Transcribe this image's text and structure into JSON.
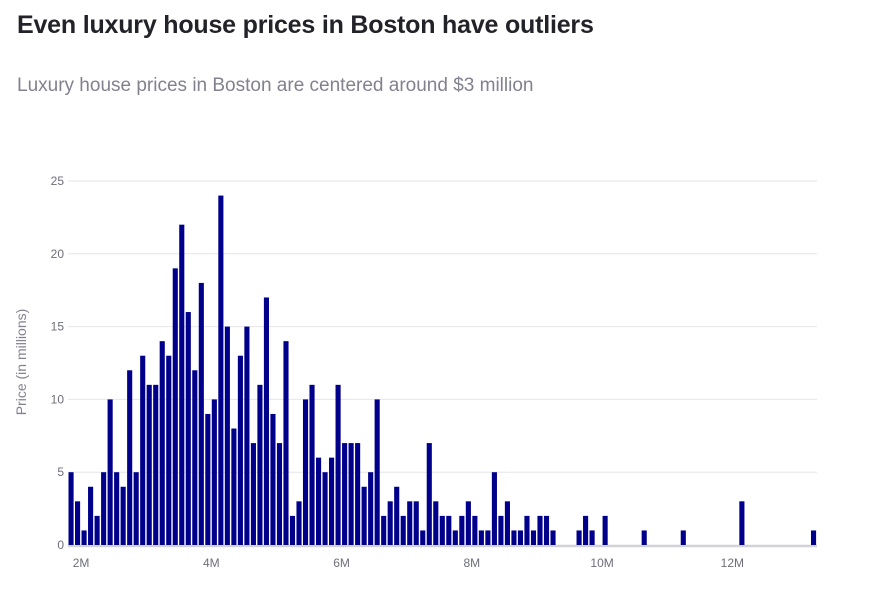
{
  "title": "Even luxury house prices in Boston have outliers",
  "subtitle": "Luxury house prices in Boston are centered around $3 million",
  "colors": {
    "bar": "#00008b",
    "grid": "#e6e6ea",
    "baseline": "#d2d2d7",
    "text": "#222229",
    "muted": "#82828f"
  },
  "chart_data": {
    "type": "bar",
    "ylabel": "Price (in millions)",
    "xlabel": "",
    "grid": true,
    "ylim": [
      0,
      25
    ],
    "yticks": [
      0,
      5,
      10,
      15,
      20,
      25
    ],
    "x_range": [
      1.8,
      13.3
    ],
    "x_ticks": [
      2,
      4,
      6,
      8,
      10,
      12
    ],
    "x_tick_labels": [
      "2M",
      "4M",
      "6M",
      "8M",
      "10M",
      "12M"
    ],
    "bin_width": 0.1,
    "x": [
      1.8,
      1.9,
      2.0,
      2.1,
      2.2,
      2.3,
      2.4,
      2.5,
      2.6,
      2.7,
      2.8,
      2.9,
      3.0,
      3.1,
      3.2,
      3.3,
      3.4,
      3.5,
      3.6,
      3.7,
      3.8,
      3.9,
      4.0,
      4.1,
      4.2,
      4.3,
      4.4,
      4.5,
      4.6,
      4.7,
      4.8,
      4.9,
      5.0,
      5.1,
      5.2,
      5.3,
      5.4,
      5.5,
      5.6,
      5.7,
      5.8,
      5.9,
      6.0,
      6.1,
      6.2,
      6.3,
      6.4,
      6.5,
      6.6,
      6.7,
      6.8,
      6.9,
      7.0,
      7.1,
      7.2,
      7.3,
      7.4,
      7.5,
      7.6,
      7.7,
      7.8,
      7.9,
      8.0,
      8.1,
      8.2,
      8.3,
      8.4,
      8.5,
      8.6,
      8.7,
      8.8,
      8.9,
      9.0,
      9.1,
      9.2,
      9.3,
      9.4,
      9.5,
      9.6,
      9.7,
      9.8,
      9.9,
      10.0,
      10.1,
      10.2,
      10.3,
      10.4,
      10.5,
      10.6,
      10.7,
      10.8,
      10.9,
      11.0,
      11.1,
      11.2,
      11.3,
      11.4,
      11.5,
      11.6,
      11.7,
      11.8,
      11.9,
      12.0,
      12.1,
      12.2,
      12.3,
      12.4,
      12.5,
      12.6,
      12.7,
      12.8,
      12.9,
      13.0,
      13.1,
      13.2
    ],
    "values": [
      5,
      3,
      1,
      4,
      2,
      5,
      10,
      5,
      4,
      12,
      5,
      13,
      11,
      11,
      14,
      13,
      19,
      22,
      16,
      12,
      18,
      9,
      10,
      24,
      15,
      8,
      13,
      15,
      7,
      11,
      17,
      9,
      7,
      14,
      2,
      3,
      10,
      11,
      6,
      5,
      6,
      11,
      7,
      7,
      7,
      4,
      5,
      10,
      2,
      3,
      4,
      2,
      3,
      3,
      1,
      7,
      3,
      2,
      2,
      1,
      2,
      3,
      2,
      1,
      1,
      5,
      2,
      3,
      1,
      1,
      2,
      1,
      2,
      2,
      1,
      0,
      0,
      0,
      1,
      2,
      1,
      0,
      2,
      0,
      0,
      0,
      0,
      0,
      1,
      0,
      0,
      0,
      0,
      0,
      1,
      0,
      0,
      0,
      0,
      0,
      0,
      0,
      0,
      3,
      0,
      0,
      0,
      0,
      0,
      0,
      0,
      0,
      0,
      0,
      1
    ]
  }
}
